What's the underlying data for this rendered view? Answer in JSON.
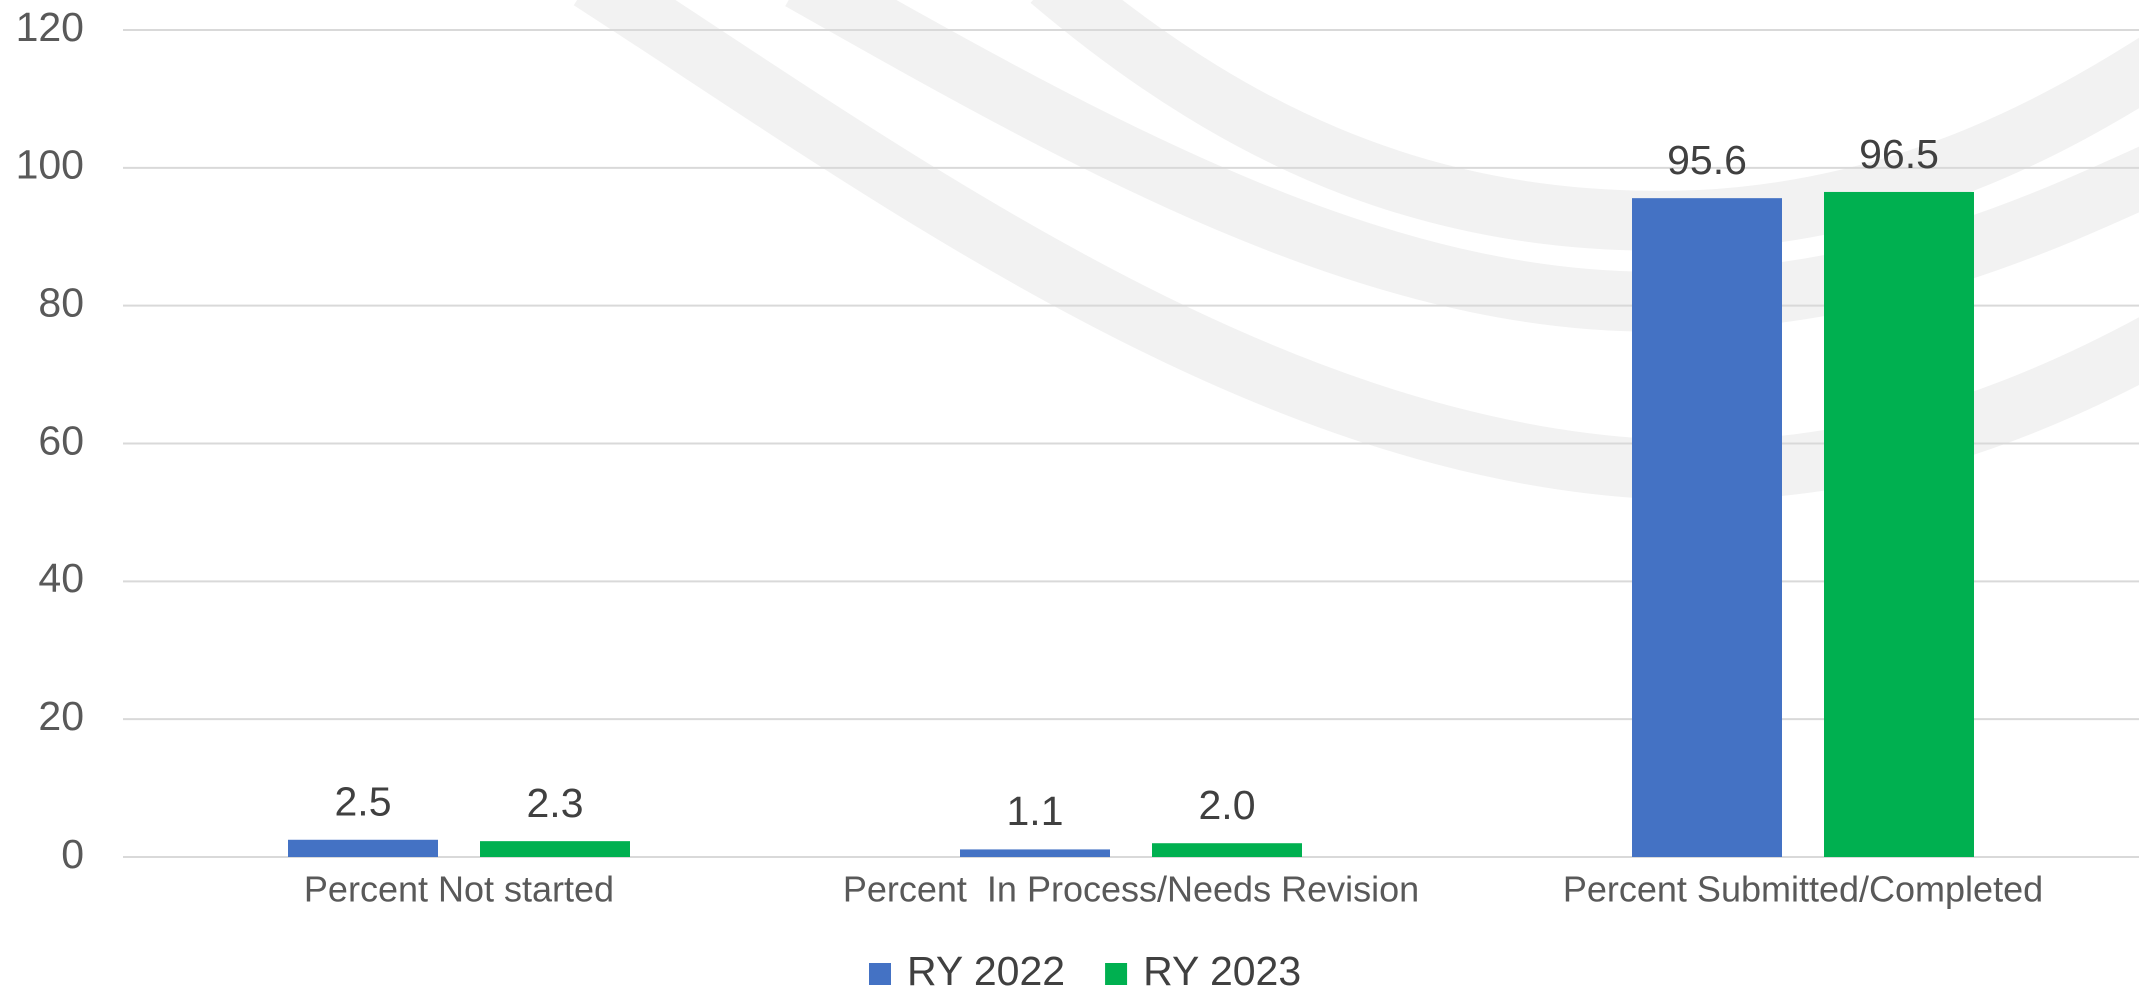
{
  "chart_data": {
    "type": "bar",
    "categories": [
      "Percent Not started",
      "Percent  In Process/Needs Revision",
      "Percent Submitted/Completed"
    ],
    "series": [
      {
        "name": "RY 2022",
        "color": "#4472c4",
        "values": [
          2.5,
          1.1,
          95.6
        ],
        "value_labels": [
          "2.5",
          "1.1",
          "95.6"
        ]
      },
      {
        "name": "RY 2023",
        "color": "#00b050",
        "values": [
          2.3,
          2,
          96.5
        ],
        "value_labels": [
          "2.3",
          "2.0",
          "96.5"
        ]
      }
    ],
    "ylim": [
      0,
      120
    ],
    "yticks": [
      0,
      20,
      40,
      60,
      80,
      100,
      120
    ],
    "grid": true,
    "legend": "bottom"
  }
}
